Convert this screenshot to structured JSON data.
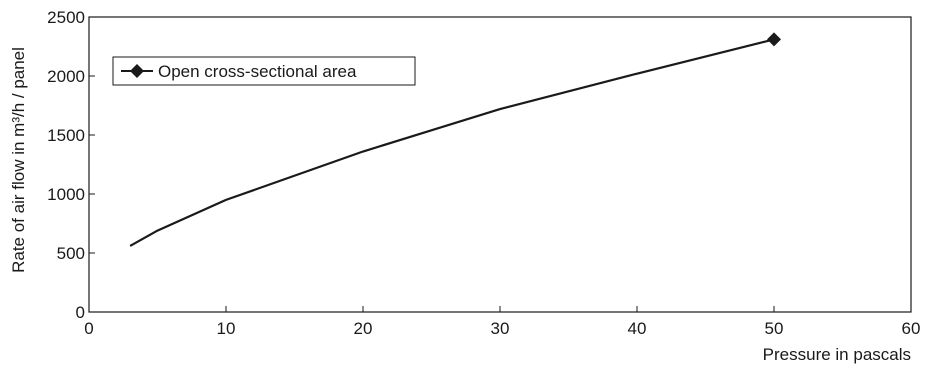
{
  "chart_data": {
    "type": "line",
    "xlabel": "Pressure in pascals",
    "ylabel": "Rate of air flow in m³/h / panel",
    "xlim": [
      0,
      60
    ],
    "ylim": [
      0,
      2500
    ],
    "xticks": [
      0,
      10,
      20,
      30,
      40,
      50,
      60
    ],
    "yticks": [
      0,
      500,
      1000,
      1500,
      2000,
      2500
    ],
    "grid": false,
    "legend_position": "top-left",
    "series": [
      {
        "name": "Open cross-sectional area",
        "marker": "diamond",
        "color": "#1a1a1a",
        "x": [
          3,
          5,
          10,
          20,
          30,
          40,
          50
        ],
        "y": [
          560,
          690,
          950,
          1360,
          1720,
          2020,
          2310
        ]
      }
    ]
  }
}
